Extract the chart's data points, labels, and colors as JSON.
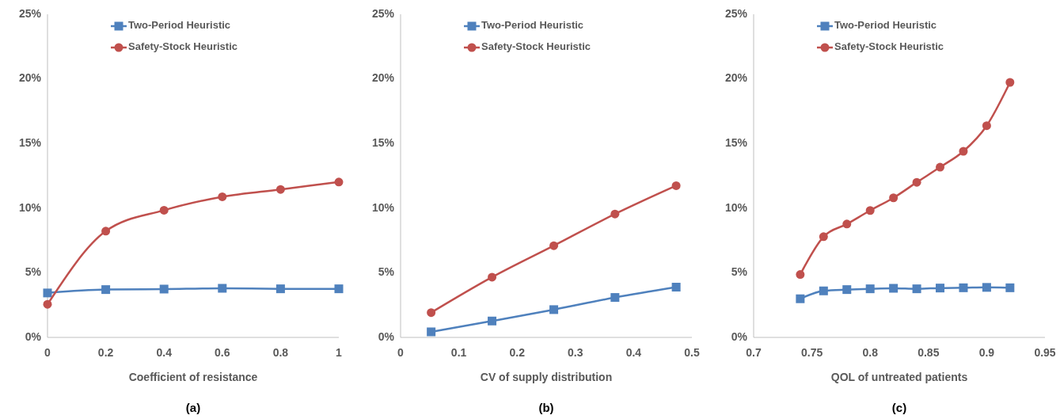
{
  "chart_data": [
    {
      "type": "line",
      "xlabel": "Coefficient of resistance",
      "annotations": [
        "(a)"
      ],
      "xlim": [
        0,
        1
      ],
      "xticks": [
        0,
        0.2,
        0.4,
        0.6,
        0.8,
        1
      ],
      "ylim": [
        0,
        25
      ],
      "yticks": [
        {
          "value": 0,
          "label": "0%"
        },
        {
          "value": 5,
          "label": "5%"
        },
        {
          "value": 10,
          "label": "10%"
        },
        {
          "value": 15,
          "label": "15%"
        },
        {
          "value": 20,
          "label": "20%"
        },
        {
          "value": 25,
          "label": "25%"
        }
      ],
      "grid": false,
      "legend": "top",
      "x": [
        0,
        0.2,
        0.4,
        0.6,
        0.8,
        1
      ],
      "series": [
        {
          "name": "Two-Period Heuristic",
          "color": "#4f81bd",
          "marker": "square",
          "values": [
            3.44,
            3.7,
            3.74,
            3.8,
            3.76,
            3.76
          ]
        },
        {
          "name": "Safety-Stock Heuristic",
          "color": "#c0504d",
          "marker": "circle",
          "values": [
            2.56,
            8.22,
            9.84,
            10.88,
            11.45,
            12.02
          ]
        }
      ]
    },
    {
      "type": "line",
      "xlabel": "CV of supply distribution",
      "annotations": [
        "(b)"
      ],
      "xlim": [
        0,
        0.5
      ],
      "xticks": [
        0,
        0.1,
        0.2,
        0.3,
        0.4,
        0.5
      ],
      "ylim": [
        0,
        25
      ],
      "yticks": [
        {
          "value": 0,
          "label": "0%"
        },
        {
          "value": 5,
          "label": "5%"
        },
        {
          "value": 10,
          "label": "10%"
        },
        {
          "value": 15,
          "label": "15%"
        },
        {
          "value": 20,
          "label": "20%"
        },
        {
          "value": 25,
          "label": "25%"
        }
      ],
      "grid": false,
      "legend": "top",
      "x": [
        0.0525,
        0.157,
        0.263,
        0.368,
        0.473
      ],
      "series": [
        {
          "name": "Two-Period Heuristic",
          "color": "#4f81bd",
          "marker": "square",
          "values": [
            0.43,
            1.27,
            2.15,
            3.09,
            3.89
          ]
        },
        {
          "name": "Safety-Stock Heuristic",
          "color": "#c0504d",
          "marker": "circle",
          "values": [
            1.92,
            4.66,
            7.1,
            9.55,
            11.74
          ]
        }
      ]
    },
    {
      "type": "line",
      "xlabel": "QOL of untreated patients",
      "annotations": [
        "(c)"
      ],
      "xlim": [
        0.7,
        0.95
      ],
      "xticks": [
        0.7,
        0.75,
        0.8,
        0.85,
        0.9,
        0.95
      ],
      "ylim": [
        0,
        25
      ],
      "yticks": [
        {
          "value": 0,
          "label": "0%"
        },
        {
          "value": 5,
          "label": "5%"
        },
        {
          "value": 10,
          "label": "10%"
        },
        {
          "value": 15,
          "label": "15%"
        },
        {
          "value": 20,
          "label": "20%"
        },
        {
          "value": 25,
          "label": "25%"
        }
      ],
      "grid": false,
      "legend": "top",
      "x": [
        0.74,
        0.76,
        0.78,
        0.8,
        0.82,
        0.84,
        0.86,
        0.88,
        0.9,
        0.92
      ],
      "series": [
        {
          "name": "Two-Period Heuristic",
          "color": "#4f81bd",
          "marker": "square",
          "values": [
            2.99,
            3.6,
            3.7,
            3.76,
            3.8,
            3.76,
            3.82,
            3.84,
            3.87,
            3.84
          ]
        },
        {
          "name": "Safety-Stock Heuristic",
          "color": "#c0504d",
          "marker": "circle",
          "values": [
            4.87,
            7.79,
            8.77,
            9.82,
            10.8,
            12.0,
            13.17,
            14.4,
            16.38,
            19.73
          ]
        }
      ]
    }
  ]
}
